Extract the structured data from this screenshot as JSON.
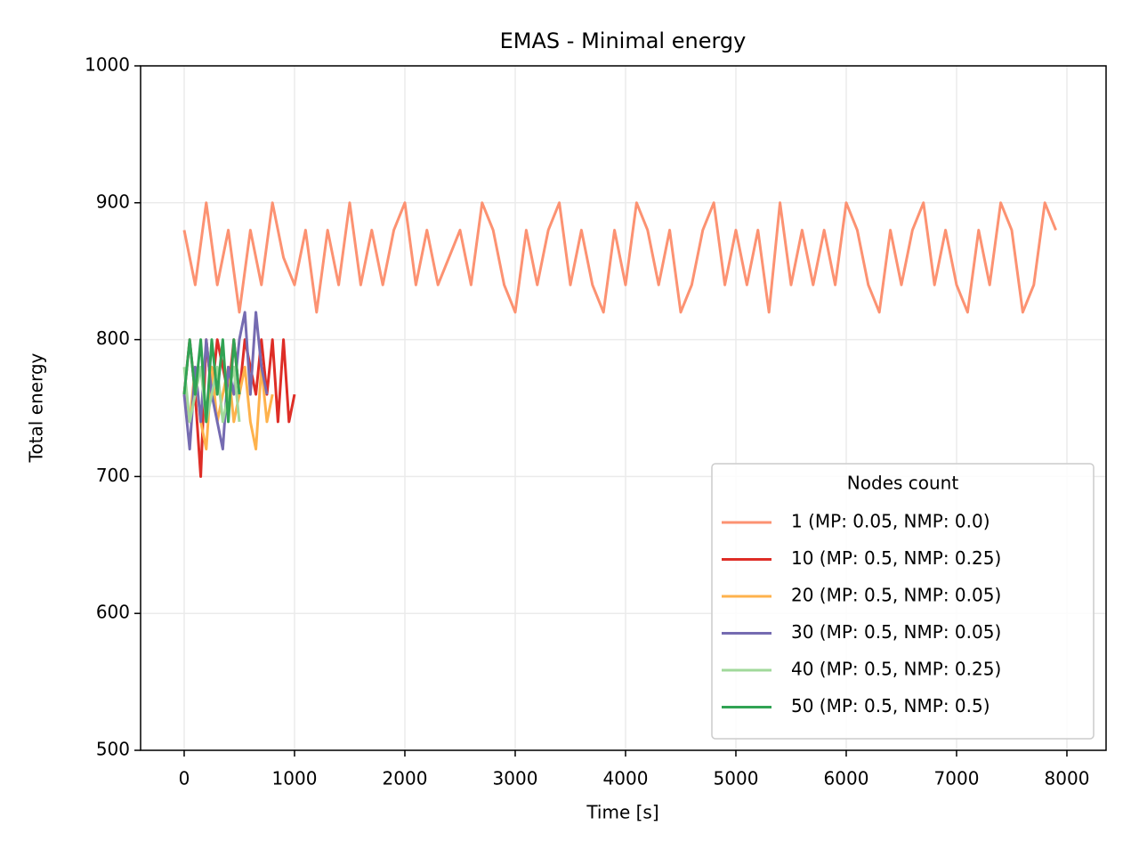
{
  "chart_data": {
    "type": "line",
    "title": "EMAS - Minimal energy",
    "x_label": "Time [s]",
    "y_label": "Total energy",
    "xlim": [
      -395,
      8355
    ],
    "ylim": [
      500,
      1000
    ],
    "xticks": [
      0,
      1000,
      2000,
      3000,
      4000,
      5000,
      6000,
      7000,
      8000
    ],
    "yticks": [
      500,
      600,
      700,
      800,
      900,
      1000
    ],
    "grid": true,
    "legend_title": "Nodes count",
    "legend_position": "lower right",
    "series": [
      {
        "name": "1 (MP: 0.05, NMP: 0.0)",
        "color": "#fc9272",
        "x": [
          0,
          100,
          200,
          300,
          400,
          500,
          600,
          700,
          800,
          900,
          1000,
          1100,
          1200,
          1300,
          1400,
          1500,
          1600,
          1700,
          1800,
          1900,
          2000,
          2100,
          2200,
          2300,
          2400,
          2500,
          2600,
          2700,
          2800,
          2900,
          3000,
          3100,
          3200,
          3300,
          3400,
          3500,
          3600,
          3700,
          3800,
          3900,
          4000,
          4100,
          4200,
          4300,
          4400,
          4500,
          4600,
          4700,
          4800,
          4900,
          5000,
          5100,
          5200,
          5300,
          5400,
          5500,
          5600,
          5700,
          5800,
          5900,
          6000,
          6100,
          6200,
          6300,
          6400,
          6500,
          6600,
          6700,
          6800,
          6900,
          7000,
          7100,
          7200,
          7300,
          7400,
          7500,
          7600,
          7700,
          7800,
          7900
        ],
        "values": [
          880,
          840,
          900,
          840,
          880,
          820,
          880,
          840,
          900,
          860,
          840,
          880,
          820,
          880,
          840,
          900,
          840,
          880,
          840,
          880,
          900,
          840,
          880,
          840,
          860,
          880,
          840,
          900,
          880,
          840,
          820,
          880,
          840,
          880,
          900,
          840,
          880,
          840,
          820,
          880,
          840,
          900,
          880,
          840,
          880,
          820,
          840,
          880,
          900,
          840,
          880,
          840,
          880,
          820,
          900,
          840,
          880,
          840,
          880,
          840,
          900,
          880,
          840,
          820,
          880,
          840,
          880,
          900,
          840,
          880,
          840,
          820,
          880,
          840,
          900,
          880,
          820,
          840,
          900,
          880
        ]
      },
      {
        "name": "10 (MP: 0.5, NMP: 0.25)",
        "color": "#de2d26",
        "x": [
          0,
          50,
          100,
          150,
          200,
          250,
          300,
          350,
          400,
          450,
          500,
          550,
          600,
          650,
          700,
          750,
          800,
          850,
          900,
          950,
          1000
        ],
        "values": [
          760,
          800,
          760,
          700,
          800,
          760,
          800,
          780,
          760,
          800,
          760,
          800,
          780,
          760,
          800,
          760,
          800,
          740,
          800,
          740,
          760
        ]
      },
      {
        "name": "20 (MP: 0.5, NMP: 0.05)",
        "color": "#feb24c",
        "x": [
          0,
          50,
          100,
          150,
          200,
          250,
          300,
          350,
          400,
          450,
          500,
          550,
          600,
          650,
          700,
          750,
          800
        ],
        "values": [
          760,
          740,
          780,
          740,
          720,
          780,
          740,
          760,
          780,
          740,
          760,
          780,
          740,
          720,
          780,
          740,
          760
        ]
      },
      {
        "name": "30 (MP: 0.5, NMP: 0.05)",
        "color": "#756bb1",
        "x": [
          0,
          50,
          100,
          150,
          200,
          250,
          300,
          350,
          400,
          450,
          500,
          550,
          600,
          650,
          700,
          750
        ],
        "values": [
          760,
          720,
          780,
          740,
          800,
          760,
          740,
          720,
          780,
          760,
          800,
          820,
          760,
          820,
          780,
          760
        ]
      },
      {
        "name": "40 (MP: 0.5, NMP: 0.25)",
        "color": "#a1d99b",
        "x": [
          0,
          50,
          100,
          150,
          200,
          250,
          300,
          350,
          400,
          450,
          500
        ],
        "values": [
          780,
          740,
          760,
          780,
          740,
          760,
          780,
          740,
          760,
          780,
          740
        ]
      },
      {
        "name": "50 (MP: 0.5, NMP: 0.5)",
        "color": "#31a354",
        "x": [
          0,
          50,
          100,
          150,
          200,
          250,
          300,
          350,
          400,
          450,
          500
        ],
        "values": [
          760,
          800,
          760,
          800,
          740,
          800,
          760,
          800,
          740,
          800,
          760
        ]
      }
    ]
  }
}
